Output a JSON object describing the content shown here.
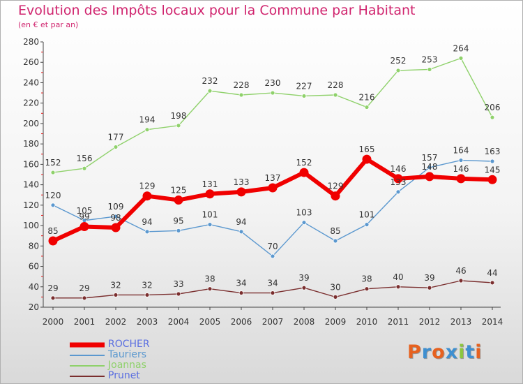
{
  "header": {
    "title": "Evolution des Impôts locaux pour la Commune par Habitant",
    "subtitle": "(en € et par an)"
  },
  "logo": {
    "text": "Proxiti",
    "colors": [
      "#e6611f",
      "#3e8fd0",
      "#e6611f",
      "#3e8fd0",
      "#8cc63e",
      "#3e8fd0",
      "#e6611f"
    ]
  },
  "chart_data": {
    "type": "line",
    "x": [
      2000,
      2001,
      2002,
      2003,
      2004,
      2005,
      2006,
      2007,
      2008,
      2009,
      2010,
      2011,
      2012,
      2013,
      2014
    ],
    "ylim": [
      20,
      280
    ],
    "yticks": [
      20,
      40,
      60,
      80,
      100,
      120,
      140,
      160,
      180,
      200,
      220,
      240,
      260,
      280
    ],
    "grid": false,
    "legend_position": "bottom-left",
    "series": [
      {
        "name": "Prunet",
        "color": "#7a2e2e",
        "values": [
          29,
          29,
          32,
          32,
          33,
          38,
          34,
          34,
          39,
          30,
          38,
          40,
          39,
          46,
          44
        ]
      },
      {
        "name": "Joannas",
        "color": "#8fd16b",
        "values": [
          152,
          156,
          177,
          194,
          198,
          232,
          228,
          230,
          227,
          228,
          216,
          252,
          253,
          264,
          206
        ]
      },
      {
        "name": "Tauriers",
        "color": "#5b98cf",
        "values": [
          120,
          105,
          109,
          94,
          95,
          101,
          94,
          70,
          103,
          85,
          101,
          133,
          157,
          164,
          163
        ]
      },
      {
        "name": "ROCHER",
        "color": "#f00000",
        "values": [
          85,
          99,
          98,
          129,
          125,
          131,
          133,
          137,
          152,
          129,
          165,
          146,
          148,
          146,
          145
        ]
      }
    ],
    "legend": [
      {
        "name": "ROCHER",
        "color": "#f00000",
        "label_color": "#5b6fe0"
      },
      {
        "name": "Tauriers",
        "color": "#5b98cf",
        "label_color": "#5b98cf"
      },
      {
        "name": "Joannas",
        "color": "#8fd16b",
        "label_color": "#8fd16b"
      },
      {
        "name": "Prunet",
        "color": "#7a2e2e",
        "label_color": "#5b6fe0"
      }
    ]
  }
}
